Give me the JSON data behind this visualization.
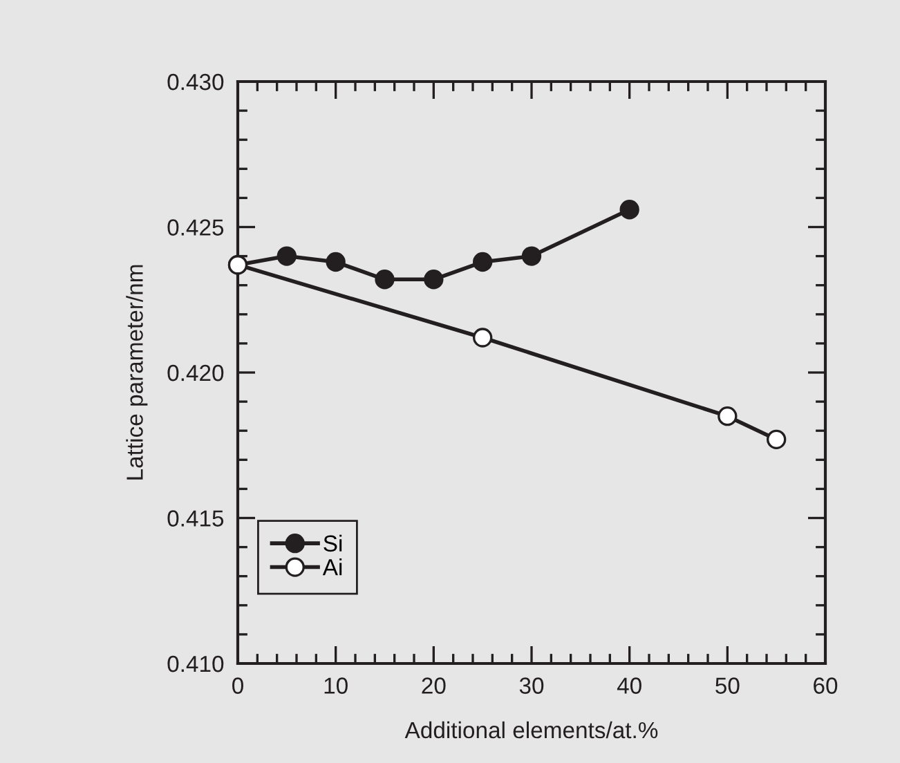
{
  "chart_data": {
    "type": "line",
    "xlabel": "Additional elements/at.%",
    "ylabel": "Lattice parameter/nm",
    "xlim": [
      0,
      60
    ],
    "xticks": [
      0,
      10,
      20,
      30,
      40,
      50,
      60
    ],
    "ylim": [
      0.41,
      0.43
    ],
    "yticks": [
      {
        "value": 0.41,
        "label": "0.410"
      },
      {
        "value": 0.415,
        "label": "0.415"
      },
      {
        "value": 0.42,
        "label": "0.420"
      },
      {
        "value": 0.425,
        "label": "0.425"
      },
      {
        "value": 0.43,
        "label": "0.430"
      }
    ],
    "grid": false,
    "legend": "bottom left",
    "line_style": "solid",
    "series": [
      {
        "name": "Si",
        "color": "#231f20",
        "marker": "circle",
        "x": [
          0,
          5,
          10,
          15,
          20,
          25,
          30,
          40
        ],
        "values": [
          0.4237,
          0.424,
          0.4238,
          0.4232,
          0.4232,
          0.4238,
          0.424,
          0.4256
        ]
      },
      {
        "name": "Ai",
        "color": "#ffffff",
        "marker": "circle",
        "x": [
          0,
          25,
          50,
          55
        ],
        "values": [
          0.4237,
          0.4212,
          0.4185,
          0.4177
        ]
      }
    ]
  }
}
